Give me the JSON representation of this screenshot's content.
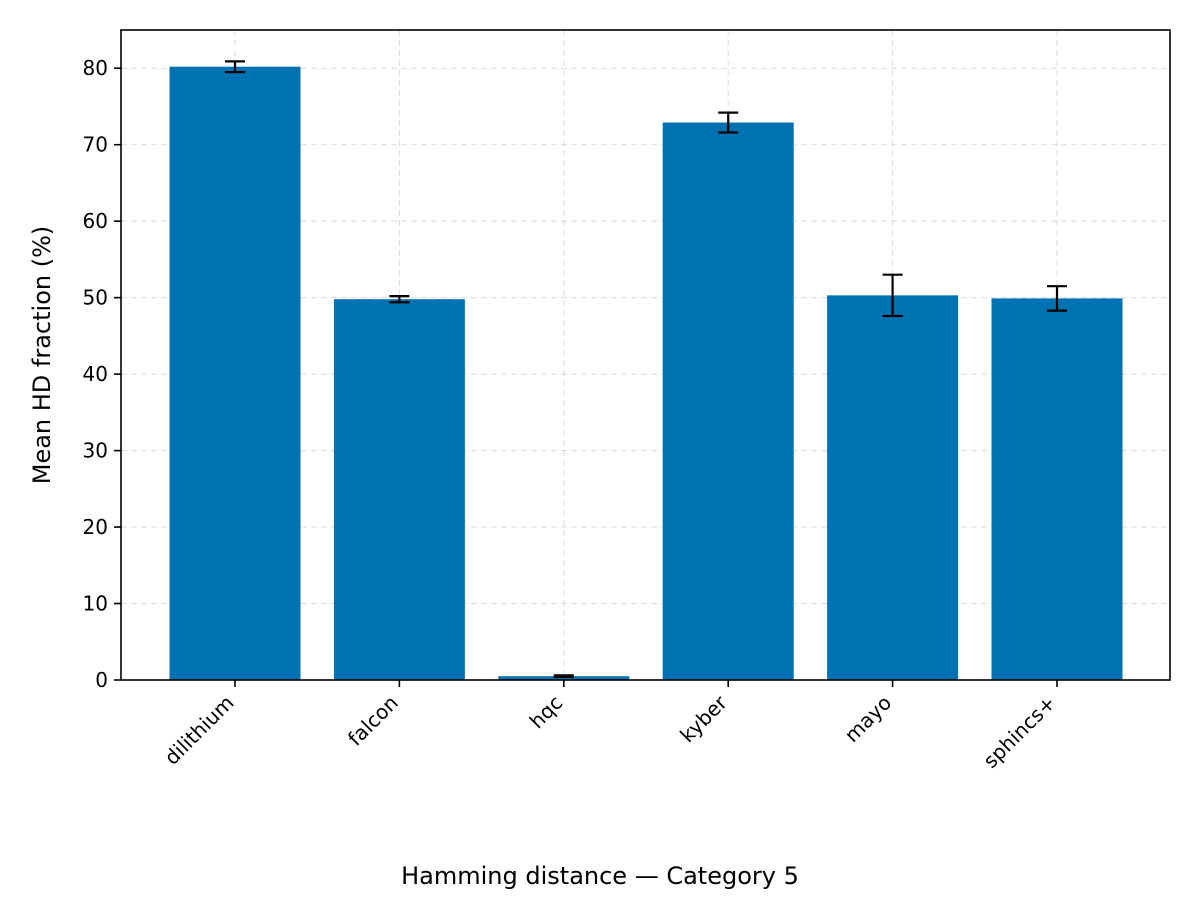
{
  "chart_data": {
    "type": "bar",
    "categories": [
      "dilithium",
      "falcon",
      "hqc",
      "kyber",
      "mayo",
      "sphincs+"
    ],
    "values": [
      80.2,
      49.8,
      0.5,
      72.9,
      50.3,
      49.9
    ],
    "errors": [
      0.7,
      0.4,
      0.1,
      1.3,
      2.7,
      1.6
    ],
    "title": "",
    "xlabel": "",
    "ylabel": "Mean HD fraction (%)",
    "ylim": [
      0,
      85
    ],
    "yticks": [
      0,
      10,
      20,
      30,
      40,
      50,
      60,
      70,
      80
    ],
    "grid": true,
    "bar_color": "#0072b2",
    "error_color": "#000000"
  },
  "caption": "Hamming distance — Category 5"
}
